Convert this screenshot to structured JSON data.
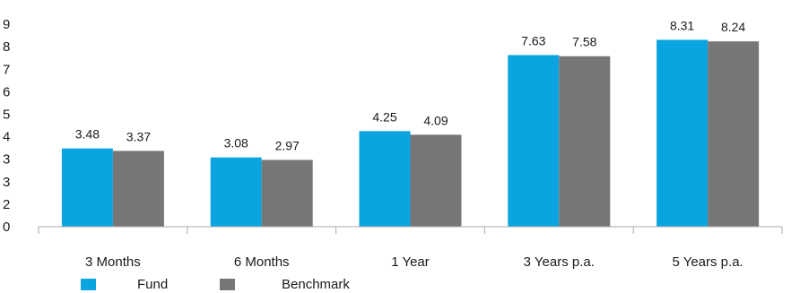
{
  "chart_data": {
    "type": "bar",
    "categories": [
      "3 Months",
      "6 Months",
      "1 Year",
      "3 Years p.a.",
      "5 Years p.a."
    ],
    "series": [
      {
        "name": "Fund",
        "color": "#0aa5e0",
        "values": [
          3.48,
          3.08,
          4.25,
          7.63,
          8.31
        ]
      },
      {
        "name": "Benchmark",
        "color": "#777777",
        "values": [
          3.37,
          2.97,
          4.09,
          7.58,
          8.24
        ]
      }
    ],
    "yticks": [
      "0",
      "2",
      "3",
      "3",
      "4",
      "5",
      "6",
      "7",
      "8",
      "9"
    ],
    "ylim": [
      0,
      9
    ],
    "grid": false,
    "legend_position": "bottom-left"
  }
}
